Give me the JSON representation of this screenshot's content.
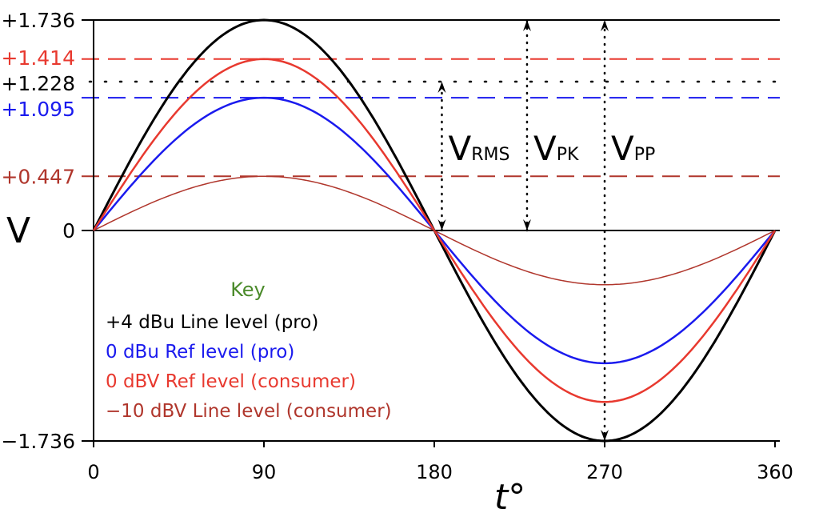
{
  "chart_data": {
    "type": "line",
    "title": "",
    "xlabel": "t°",
    "ylabel": "V",
    "xlim": [
      0,
      360
    ],
    "ylim": [
      -1.736,
      1.736
    ],
    "x_ticks": [
      "0",
      "90",
      "180",
      "270",
      "360"
    ],
    "x_tick_values": [
      0,
      90,
      180,
      270,
      360
    ],
    "y_ticks": [
      {
        "value": 1.736,
        "label": "+1.736",
        "color": "#000000"
      },
      {
        "value": 1.414,
        "label": "+1.414",
        "color": "#e8392f"
      },
      {
        "value": 1.228,
        "label": "+1.228",
        "color": "#000000"
      },
      {
        "value": 1.095,
        "label": "+1.095",
        "color": "#1a1aee"
      },
      {
        "value": 0.447,
        "label": "+0.447",
        "color": "#b0362c"
      },
      {
        "value": 0,
        "label": "0",
        "color": "#000000"
      },
      {
        "value": -1.736,
        "label": "−1.736",
        "color": "#000000"
      }
    ],
    "reference_lines": [
      {
        "value": 1.736,
        "style": "solid",
        "color": "#000000"
      },
      {
        "value": 1.414,
        "style": "dashed",
        "color": "#e8392f"
      },
      {
        "value": 1.228,
        "style": "dotted",
        "color": "#000000"
      },
      {
        "value": 1.095,
        "style": "dashed",
        "color": "#1a1aee"
      },
      {
        "value": 0.447,
        "style": "dashed",
        "color": "#b0362c"
      }
    ],
    "series": [
      {
        "name": "+4 dBu Line level (pro)",
        "amplitude": 1.736,
        "color": "#000000",
        "width": 3
      },
      {
        "name": "0 dBu Ref level (pro)",
        "amplitude": 1.095,
        "color": "#1a1aee",
        "width": 2.5
      },
      {
        "name": "0 dBV Ref level (consumer)",
        "amplitude": 1.414,
        "color": "#e8392f",
        "width": 2.5
      },
      {
        "name": "−10 dBV Line level (consumer)",
        "amplitude": 0.447,
        "color": "#b0362c",
        "width": 1.5
      }
    ],
    "legend": {
      "title": "Key",
      "title_color": "#4a8a2a",
      "placement": "bottom-left"
    },
    "annotations": [
      {
        "main": "V",
        "sub": "RMS",
        "x": 184,
        "from": 0,
        "to": 1.228
      },
      {
        "main": "V",
        "sub": "PK",
        "x": 229,
        "from": 0,
        "to": 1.736
      },
      {
        "main": "V",
        "sub": "PP",
        "x": 270,
        "from": -1.736,
        "to": 1.736
      }
    ]
  }
}
